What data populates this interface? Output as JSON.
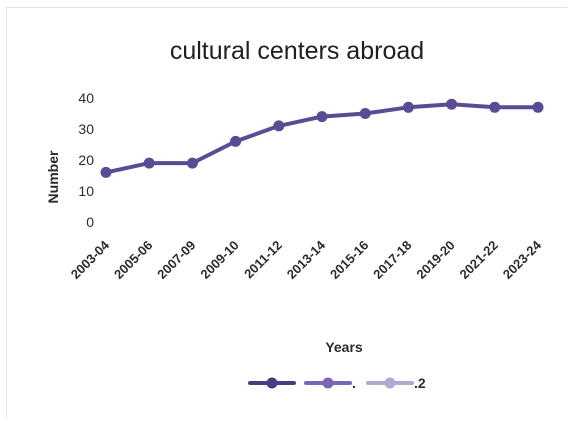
{
  "chart_data": {
    "type": "line",
    "title": "cultural  centers abroad",
    "xlabel": "Years",
    "ylabel": "Number",
    "ylim": [
      0,
      40
    ],
    "yticks": [
      0,
      10,
      20,
      30,
      40
    ],
    "grid": false,
    "legend_position": "bottom",
    "categories": [
      "2003-04",
      "2005-06",
      "2007-09",
      "2009-10",
      "2011-12",
      "2013-14",
      "2015-16",
      "2017-18",
      "2019-20",
      "2021-22",
      "2023-24"
    ],
    "series": [
      {
        "name": "",
        "color": "#5b4a94",
        "values": [
          16,
          19,
          19,
          26,
          31,
          34,
          35,
          37,
          38,
          37,
          37
        ]
      }
    ],
    "legend": [
      {
        "label": "",
        "color": "#4b3c86"
      },
      {
        "label": ".",
        "color": "#7a67b3"
      },
      {
        "label": ".2",
        "color": "#b1a8d3"
      }
    ]
  }
}
